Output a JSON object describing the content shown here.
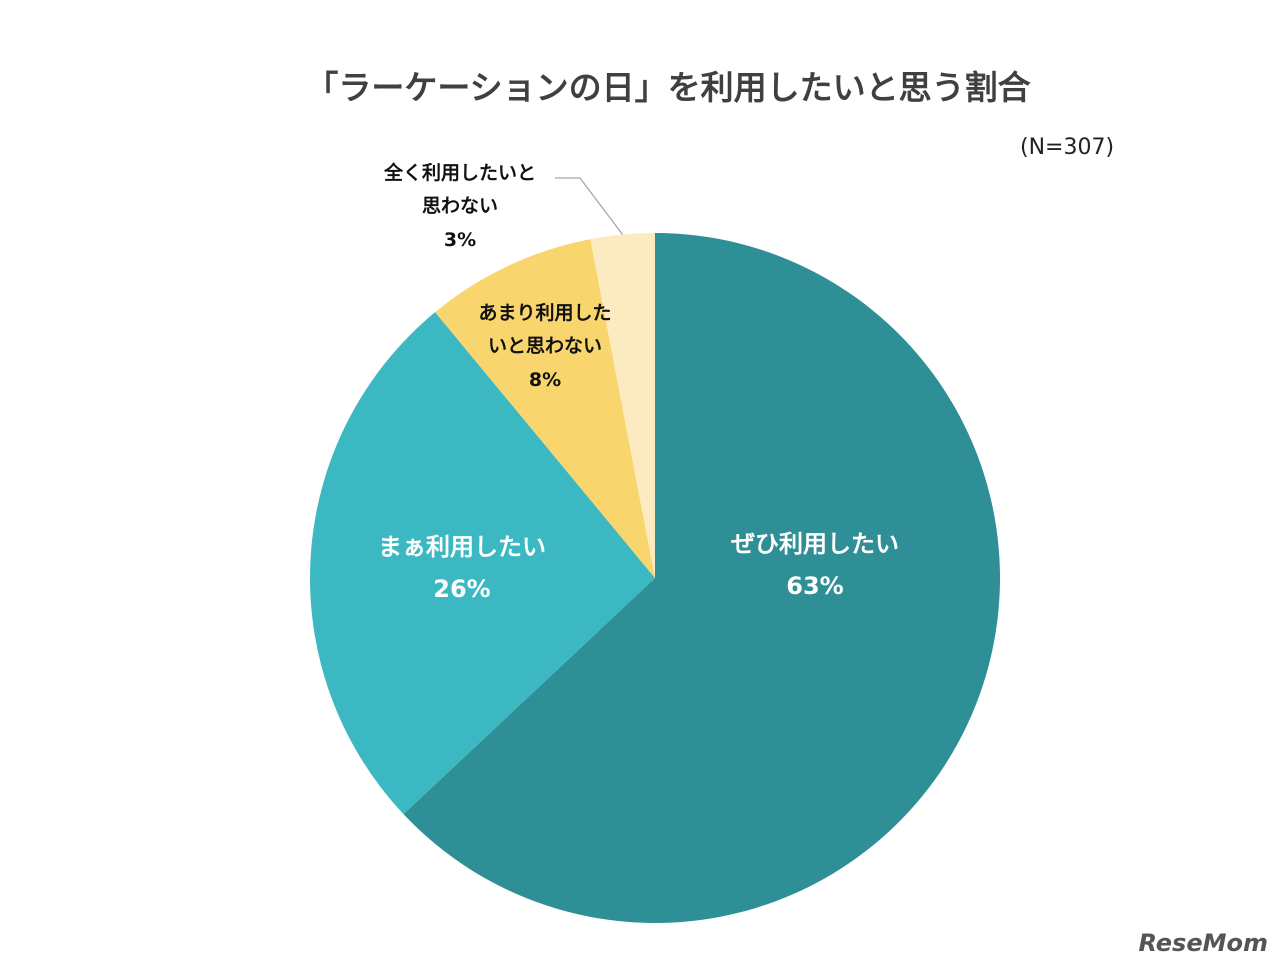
{
  "chart_data": {
    "type": "pie",
    "title": "「ラーケーションの日」を利用したいと思う割合",
    "subtitle": "(N=307)",
    "categories": [
      "ぜひ利用したい",
      "まぁ利用したい",
      "あまり利用したいと思わない",
      "全く利用したいと思わない"
    ],
    "values": [
      63,
      26,
      8,
      3
    ],
    "value_labels": [
      "63%",
      "26%",
      "8%",
      "3%"
    ],
    "colors": [
      "#2e8f97",
      "#3bb8c1",
      "#f9d56e",
      "#fcebc0"
    ]
  },
  "watermark": "ReseMom"
}
